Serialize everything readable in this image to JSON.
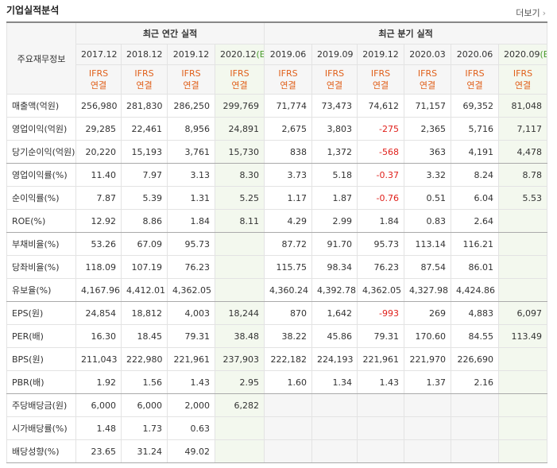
{
  "title": "기업실적분석",
  "more": "더보기",
  "header": {
    "row_label": "주요재무정보",
    "groups": [
      "최근 연간 실적",
      "최근 분기 실적"
    ],
    "columns": [
      {
        "period": "2017.12",
        "standard": "IFRS",
        "scope": "연결"
      },
      {
        "period": "2018.12",
        "standard": "IFRS",
        "scope": "연결"
      },
      {
        "period": "2019.12",
        "standard": "IFRS",
        "scope": "연결"
      },
      {
        "period": "2020.12",
        "estimate": "(E)",
        "standard": "IFRS",
        "scope": "연결"
      },
      {
        "period": "2019.06",
        "standard": "IFRS",
        "scope": "연결"
      },
      {
        "period": "2019.09",
        "standard": "IFRS",
        "scope": "연결"
      },
      {
        "period": "2019.12",
        "standard": "IFRS",
        "scope": "연결"
      },
      {
        "period": "2020.03",
        "standard": "IFRS",
        "scope": "연결"
      },
      {
        "period": "2020.06",
        "standard": "IFRS",
        "scope": "연결"
      },
      {
        "period": "2020.09",
        "estimate": "(E)",
        "standard": "IFRS",
        "scope": "연결"
      }
    ]
  },
  "table": {
    "rows": [
      {
        "label": "매출액(억원)",
        "cells": [
          "256,980",
          "281,830",
          "286,250",
          "299,769",
          "71,774",
          "73,473",
          "74,612",
          "71,157",
          "69,352",
          "81,048"
        ]
      },
      {
        "label": "영업이익(억원)",
        "cells": [
          "29,285",
          "22,461",
          "8,956",
          "24,891",
          "2,675",
          "3,803",
          "-275",
          "2,365",
          "5,716",
          "7,117"
        ]
      },
      {
        "label": "당기순이익(억원)",
        "cells": [
          "20,220",
          "15,193",
          "3,761",
          "15,730",
          "838",
          "1,372",
          "-568",
          "363",
          "4,191",
          "4,478"
        ]
      },
      {
        "label": "영업이익률(%)",
        "cells": [
          "11.40",
          "7.97",
          "3.13",
          "8.30",
          "3.73",
          "5.18",
          "-0.37",
          "3.32",
          "8.24",
          "8.78"
        ]
      },
      {
        "label": "순이익률(%)",
        "cells": [
          "7.87",
          "5.39",
          "1.31",
          "5.25",
          "1.17",
          "1.87",
          "-0.76",
          "0.51",
          "6.04",
          "5.53"
        ]
      },
      {
        "label": "ROE(%)",
        "cells": [
          "12.92",
          "8.86",
          "1.84",
          "8.11",
          "4.29",
          "2.99",
          "1.84",
          "0.83",
          "2.64",
          null
        ]
      },
      {
        "label": "부채비율(%)",
        "cells": [
          "53.26",
          "67.09",
          "95.73",
          null,
          "87.72",
          "91.70",
          "95.73",
          "113.14",
          "116.21",
          null
        ]
      },
      {
        "label": "당좌비율(%)",
        "cells": [
          "118.09",
          "107.19",
          "76.23",
          null,
          "115.75",
          "98.34",
          "76.23",
          "87.54",
          "86.01",
          null
        ]
      },
      {
        "label": "유보율(%)",
        "cells": [
          "4,167.96",
          "4,412.01",
          "4,362.05",
          null,
          "4,360.24",
          "4,392.78",
          "4,362.05",
          "4,327.98",
          "4,424.86",
          null
        ]
      },
      {
        "label": "EPS(원)",
        "cells": [
          "24,854",
          "18,812",
          "4,003",
          "18,244",
          "870",
          "1,642",
          "-993",
          "269",
          "4,883",
          "6,097"
        ]
      },
      {
        "label": "PER(배)",
        "cells": [
          "16.30",
          "18.45",
          "79.31",
          "38.48",
          "38.22",
          "45.86",
          "79.31",
          "170.60",
          "84.55",
          "113.49"
        ]
      },
      {
        "label": "BPS(원)",
        "cells": [
          "211,043",
          "222,980",
          "221,961",
          "237,903",
          "222,182",
          "224,193",
          "221,961",
          "221,970",
          "226,690",
          null
        ]
      },
      {
        "label": "PBR(배)",
        "cells": [
          "1.92",
          "1.56",
          "1.43",
          "2.95",
          "1.60",
          "1.34",
          "1.43",
          "1.37",
          "2.16",
          null
        ]
      },
      {
        "label": "주당배당금(원)",
        "cells": [
          "6,000",
          "6,000",
          "2,000",
          "6,282",
          null,
          null,
          null,
          null,
          null,
          null
        ]
      },
      {
        "label": "시가배당률(%)",
        "cells": [
          "1.48",
          "1.73",
          "0.63",
          null,
          null,
          null,
          null,
          null,
          null,
          null
        ]
      },
      {
        "label": "배당성향(%)",
        "cells": [
          "23.65",
          "31.24",
          "49.02",
          null,
          null,
          null,
          null,
          null,
          null,
          null
        ]
      }
    ],
    "group_breaks": [
      3,
      6,
      9,
      13
    ]
  }
}
